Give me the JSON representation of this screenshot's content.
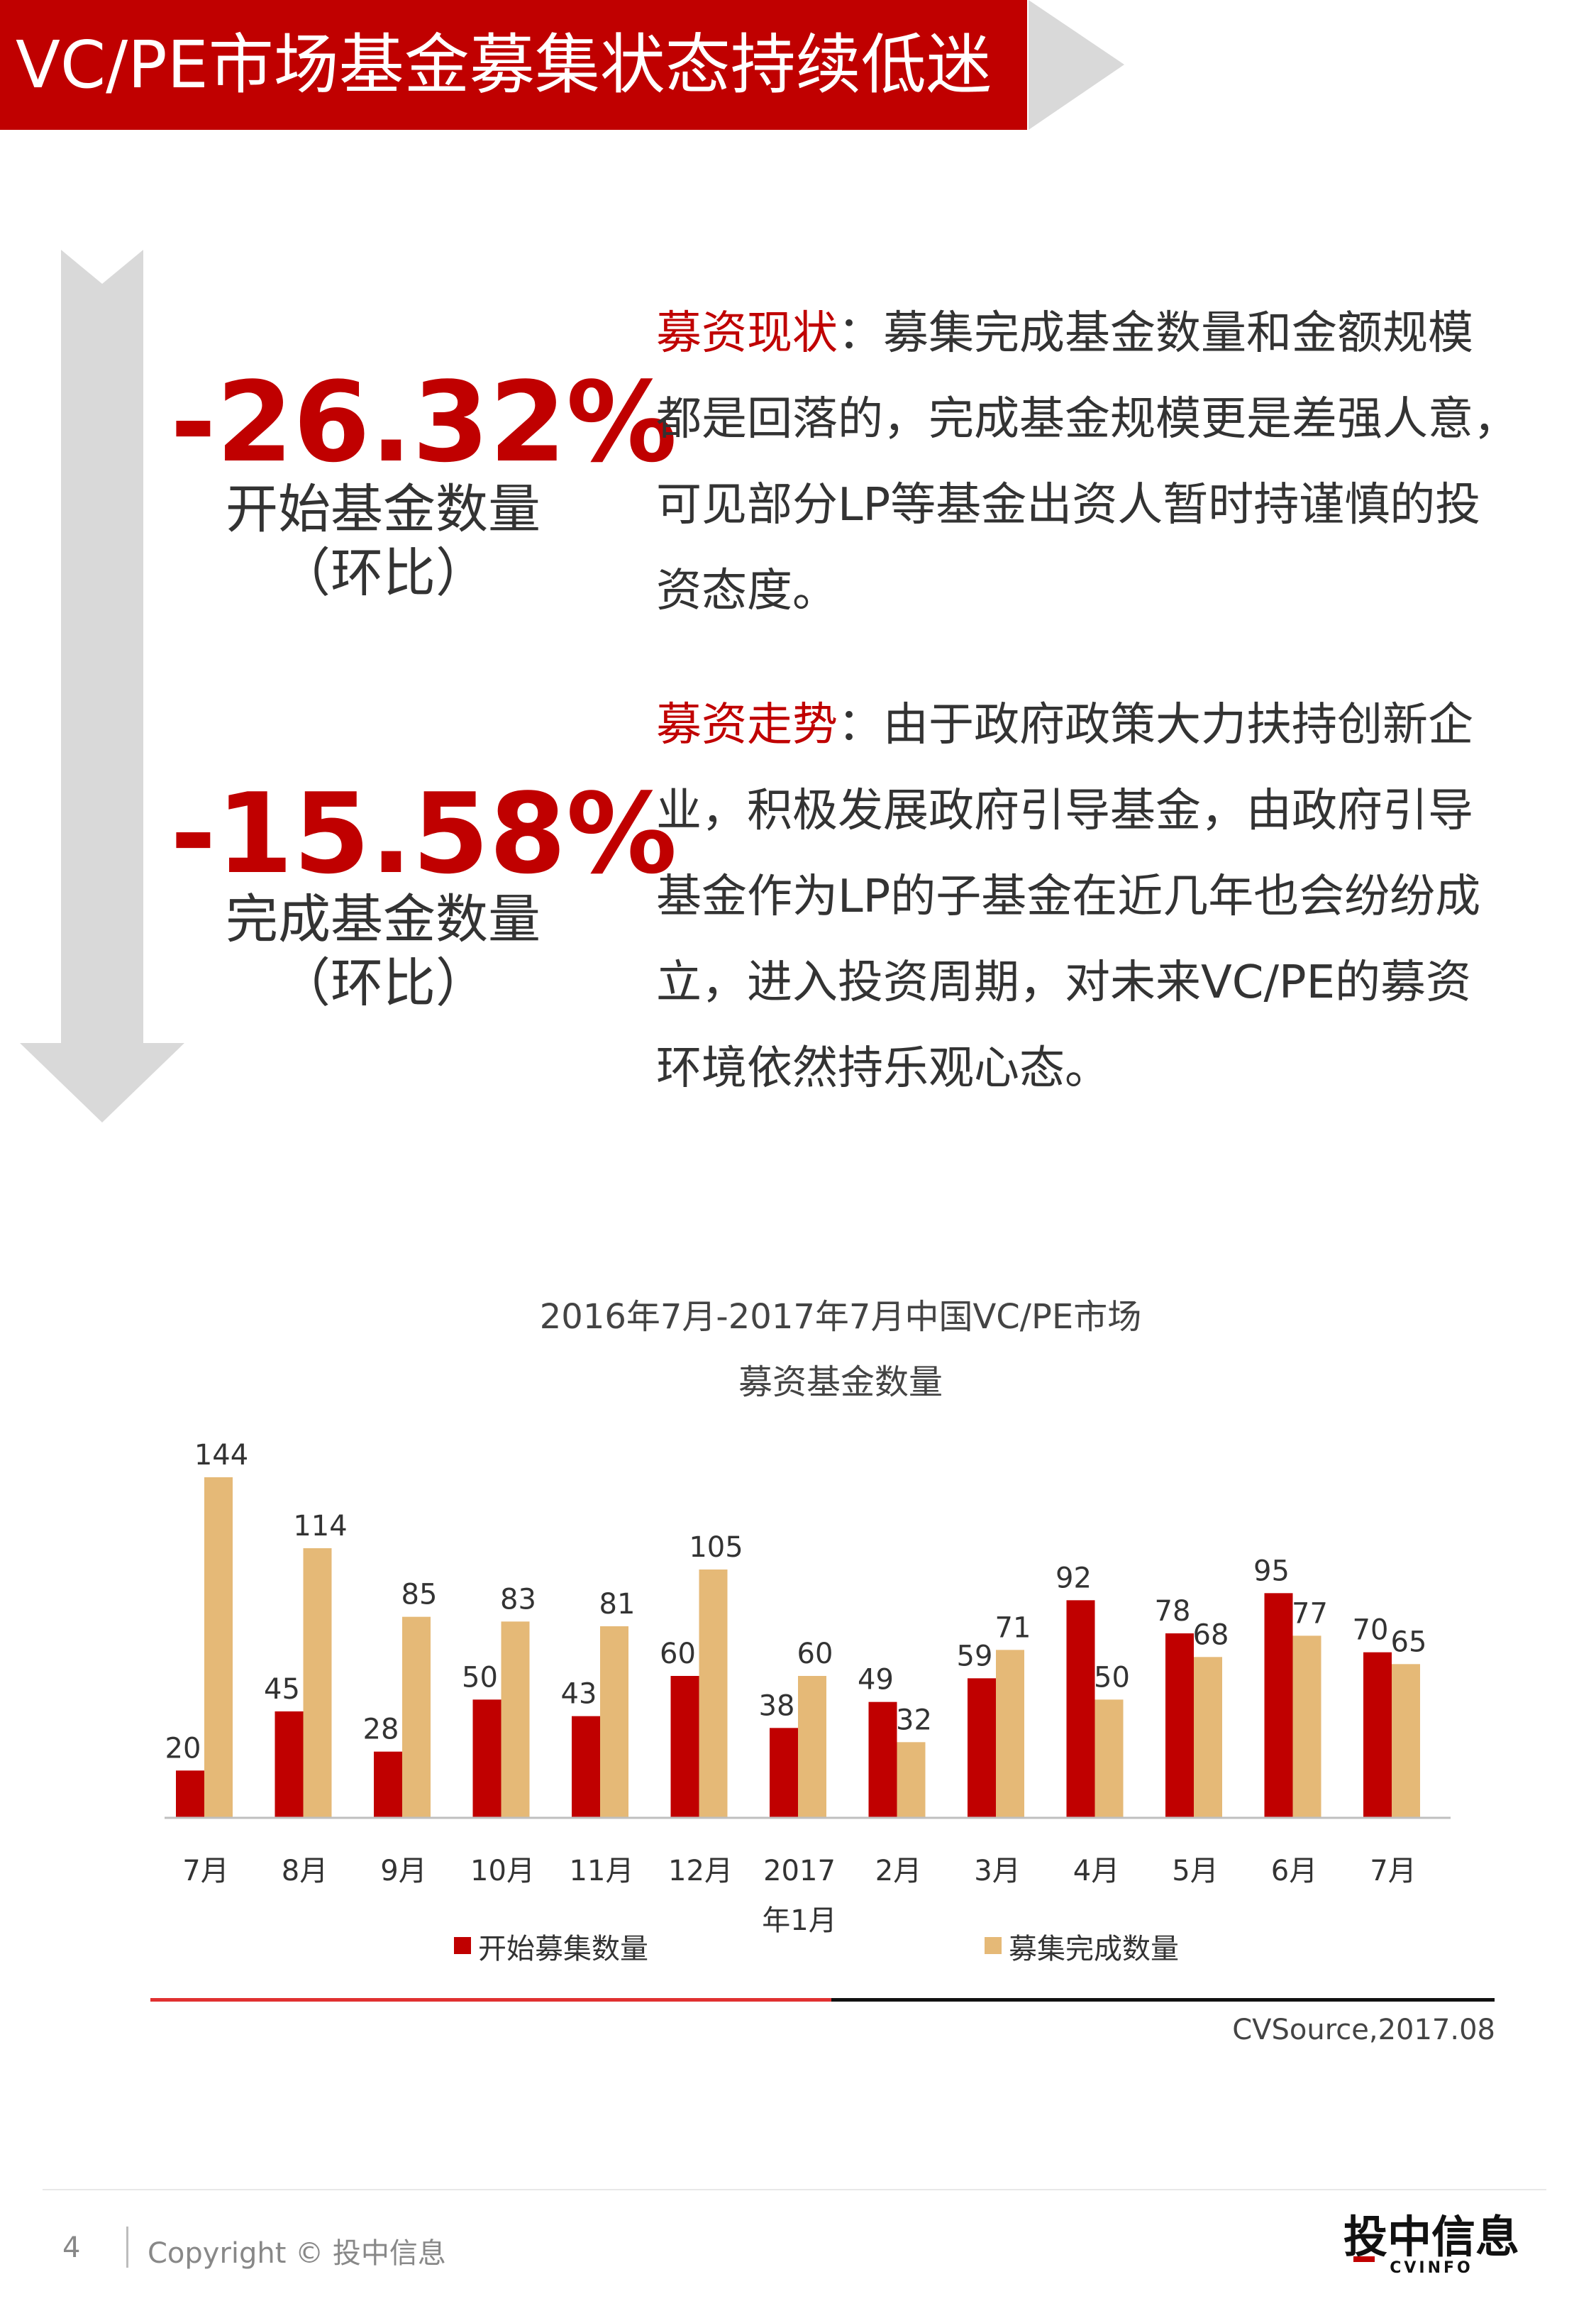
{
  "header": {
    "title": "VC/PE市场基金募集状态持续低迷"
  },
  "kpis": [
    {
      "value": "-26.32%",
      "label_line1": "开始基金数量",
      "label_line2": "（环比）"
    },
    {
      "value": "-15.58%",
      "label_line1": "完成基金数量",
      "label_line2": "（环比）"
    }
  ],
  "paragraphs": [
    {
      "highlight": "募资现状",
      "lines": [
        "：募集完成基金数量和金额规模",
        "都是回落的，完成基金规模更是差强人意，",
        "可见部分LP等基金出资人暂时持谨慎的投",
        "资态度。"
      ]
    },
    {
      "highlight": "募资走势",
      "lines": [
        "：由于政府政策大力扶持创新企",
        "业，积极发展政府引导基金，由政府引导",
        "基金作为LP的子基金在近几年也会纷纷成",
        "立，进入投资周期，对未来VC/PE的募资",
        "环境依然持乐观心态。"
      ]
    }
  ],
  "chart_data": {
    "type": "bar",
    "title_line1": "2016年7月-2017年7月中国VC/PE市场",
    "title_line2": "募资基金数量",
    "categories": [
      "7月",
      "8月",
      "9月",
      "10月",
      "11月",
      "12月",
      "2017\n年1月",
      "2月",
      "3月",
      "4月",
      "5月",
      "6月",
      "7月"
    ],
    "series": [
      {
        "name": "开始募集数量",
        "color": "#c00000",
        "values": [
          20,
          45,
          28,
          50,
          43,
          60,
          38,
          49,
          59,
          92,
          78,
          95,
          70
        ]
      },
      {
        "name": "募集完成数量",
        "color": "#e5b977",
        "values": [
          144,
          114,
          85,
          83,
          81,
          105,
          60,
          32,
          71,
          50,
          68,
          77,
          65
        ]
      }
    ],
    "ylim": [
      0,
      150
    ],
    "legend_position": "bottom",
    "grid": false
  },
  "source": "CVSource,2017.08",
  "footer": {
    "page_number": "4",
    "copyright": "Copyright © 投中信息",
    "logo_text": "投中信息",
    "logo_sub": "CVINFO"
  }
}
